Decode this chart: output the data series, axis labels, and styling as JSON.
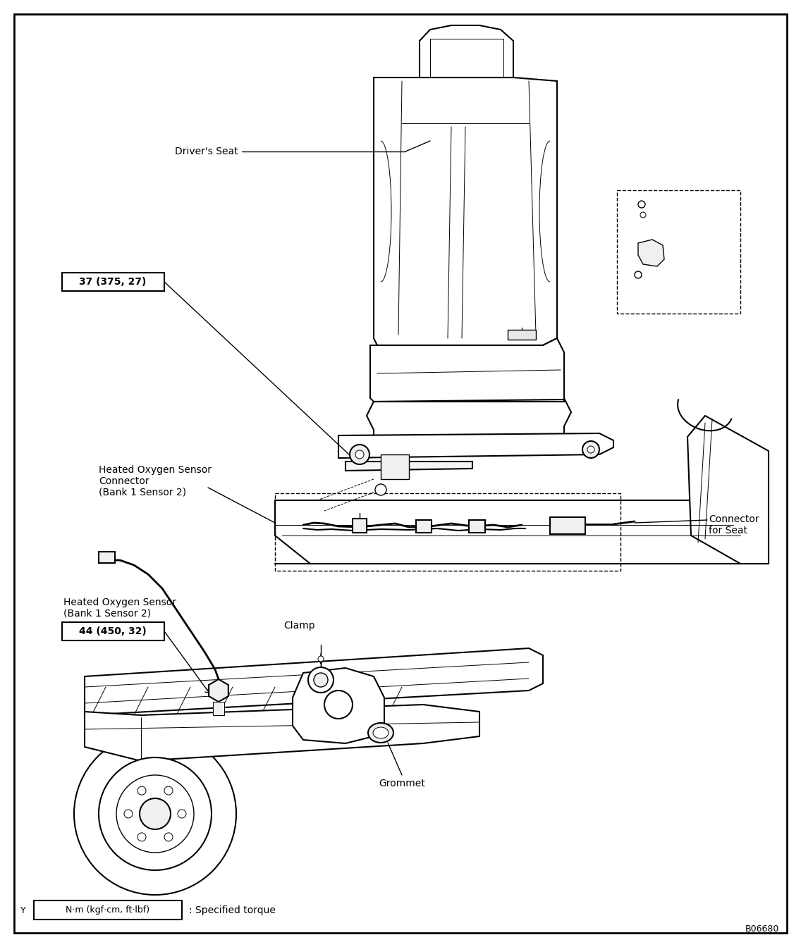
{
  "fig_width": 11.36,
  "fig_height": 13.44,
  "dpi": 100,
  "bg_color": "#ffffff",
  "border_color": "#000000",
  "text_color": "#000000",
  "diagram_code": "B06680",
  "legend_text": "N·m (kgf·cm, ft·lbf)",
  "legend_suffix": ": Specified torque",
  "labels": {
    "drivers_seat": "Driver's Seat",
    "torque1": "37 (375, 27)",
    "ho_sensor_connector_line1": "Heated Oxygen Sensor",
    "ho_sensor_connector_line2": "Connector",
    "ho_sensor_connector_line3": "(Bank 1 Sensor 2)",
    "connector_seat_line1": "Connector",
    "connector_seat_line2": "for Seat",
    "ho_sensor_line1": "Heated Oxygen Sensor",
    "ho_sensor_line2": "(Bank 1 Sensor 2)",
    "torque2": "44 (450, 32)",
    "clamp": "Clamp",
    "grommet": "Grommet"
  },
  "lw_main": 1.5,
  "lw_detail": 1.0,
  "lw_thin": 0.7,
  "font_size": 10,
  "font_size_small": 9
}
